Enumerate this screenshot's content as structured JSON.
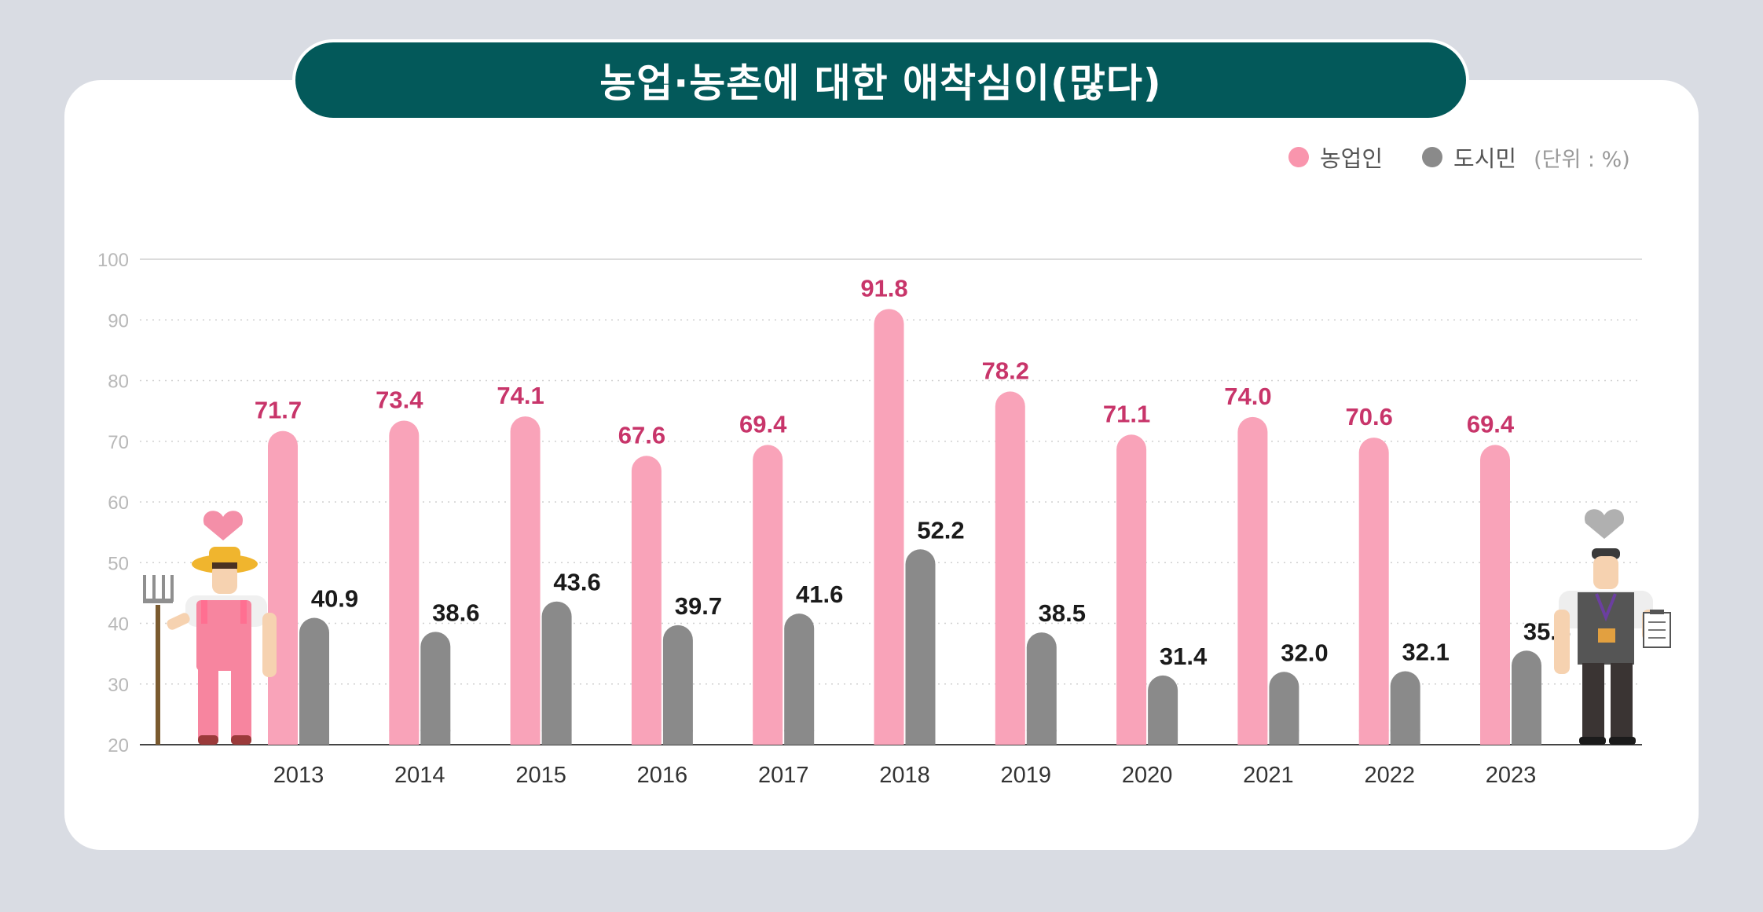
{
  "chart_data": {
    "type": "bar",
    "title": "농업·농촌에 대한 애착심이(많다)",
    "unit_label": "(단위 : %)",
    "categories": [
      "2013",
      "2014",
      "2015",
      "2016",
      "2017",
      "2018",
      "2019",
      "2020",
      "2021",
      "2022",
      "2023"
    ],
    "series": [
      {
        "name": "농업인",
        "color": "#f9a3b9",
        "label_color": "#c8356a",
        "values": [
          71.7,
          73.4,
          74.1,
          67.6,
          69.4,
          91.8,
          78.2,
          71.1,
          74.0,
          70.6,
          69.4
        ],
        "labels": [
          "71.7",
          "73.4",
          "74.1",
          "67.6",
          "69.4",
          "91.8",
          "78.2",
          "71.1",
          "74.0",
          "70.6",
          "69.4"
        ]
      },
      {
        "name": "도시민",
        "color": "#8a8a8a",
        "label_color": "#1a1a1a",
        "values": [
          40.9,
          38.6,
          43.6,
          39.7,
          41.6,
          52.2,
          38.5,
          31.4,
          32.0,
          32.1,
          35.5
        ],
        "labels": [
          "40.9",
          "38.6",
          "43.6",
          "39.7",
          "41.6",
          "52.2",
          "38.5",
          "31.4",
          "32.0",
          "32.1",
          "35.5"
        ]
      }
    ],
    "ylim": [
      20,
      100
    ],
    "yticks": [
      "20",
      "30",
      "40",
      "50",
      "60",
      "70",
      "80",
      "90",
      "100"
    ],
    "grid": "dotted",
    "legend_position": "top-right"
  },
  "legend": {
    "farmer_label": "농업인",
    "citizen_label": "도시민",
    "unit": "(단위 : %)"
  },
  "illustrations": {
    "left": "farmer-with-pitchfork-icon",
    "right": "office-worker-with-clipboard-icon"
  }
}
